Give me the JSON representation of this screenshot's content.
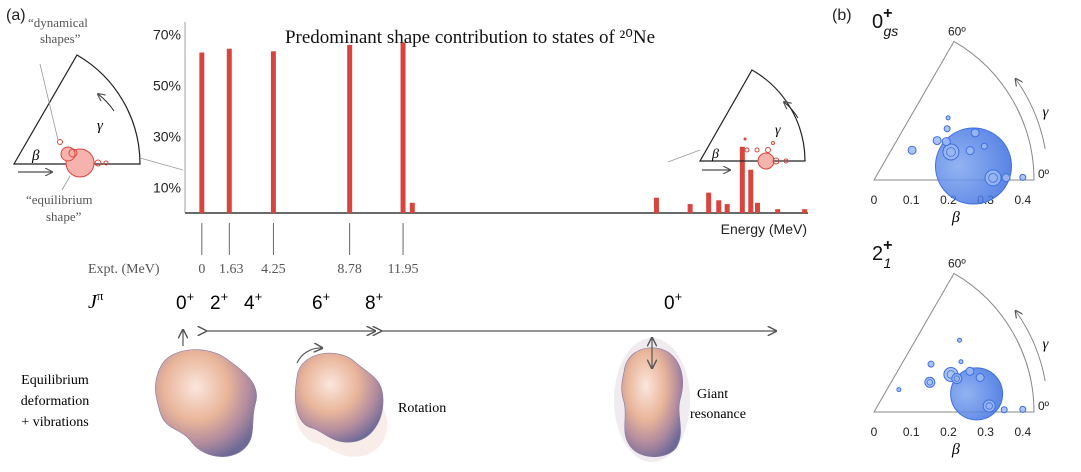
{
  "panel_labels": {
    "a": "(a)",
    "b": "(b)"
  },
  "chart_data": [
    {
      "type": "bar",
      "title": "Predominant shape contribution to states of ²⁰Ne",
      "xlabel": "Energy (MeV)",
      "ylabel": "",
      "ytick_labels": [
        "10%",
        "30%",
        "50%",
        "70%"
      ],
      "ytick_values": [
        10,
        30,
        50,
        70
      ],
      "ylim": [
        0,
        75
      ],
      "xlim": [
        -1,
        36
      ],
      "x": [
        0,
        1.63,
        4.25,
        8.78,
        11.95,
        12.5,
        27,
        29,
        30.1,
        30.7,
        31.2,
        32.1,
        32.6,
        33,
        34.2,
        35.8
      ],
      "values": [
        63,
        64.5,
        63.5,
        66,
        67,
        4,
        6,
        3.5,
        8,
        5,
        3.5,
        26,
        17,
        4,
        1.5,
        1.5
      ],
      "color": "#d9453c"
    },
    {
      "type": "scatter",
      "panel": "(b)",
      "state": {
        "main": "0",
        "sup": "+",
        "sub": "gs"
      },
      "xlabel": "β",
      "gamma_label": "γ",
      "angle_labels": [
        "60º",
        "0º"
      ],
      "xtick_labels": [
        "0",
        "0.1",
        "0.2",
        "0.3",
        "0.4"
      ],
      "xticks": [
        0,
        0.1,
        0.2,
        0.3,
        0.4
      ],
      "xlim": [
        0,
        0.43
      ],
      "points": [
        {
          "beta": 0.27,
          "gamma": 8,
          "size": 38
        },
        {
          "beta": 0.32,
          "gamma": 1,
          "size": 8
        },
        {
          "beta": 0.355,
          "gamma": 1,
          "size": 4
        },
        {
          "beta": 0.4,
          "gamma": 1,
          "size": 3
        },
        {
          "beta": 0.22,
          "gamma": 20,
          "size": 8
        },
        {
          "beta": 0.22,
          "gamma": 28,
          "size": 4
        },
        {
          "beta": 0.3,
          "gamma": 25,
          "size": 4
        },
        {
          "beta": 0.2,
          "gamma": 32,
          "size": 4
        },
        {
          "beta": 0.27,
          "gamma": 17,
          "size": 4
        },
        {
          "beta": 0.13,
          "gamma": 38,
          "size": 4
        },
        {
          "beta": 0.24,
          "gamma": 35,
          "size": 3
        },
        {
          "beta": 0.31,
          "gamma": 17,
          "size": 3
        },
        {
          "beta": 0.26,
          "gamma": 40,
          "size": 2
        }
      ]
    },
    {
      "type": "scatter",
      "panel": "(b)",
      "state": {
        "main": "2",
        "sup": "+",
        "sub": "1"
      },
      "xlabel": "β",
      "gamma_label": "γ",
      "angle_labels": [
        "60º",
        "0º"
      ],
      "xtick_labels": [
        "0",
        "0.1",
        "0.2",
        "0.3",
        "0.4"
      ],
      "xticks": [
        0,
        0.1,
        0.2,
        0.3,
        0.4
      ],
      "xlim": [
        0,
        0.43
      ],
      "points": [
        {
          "beta": 0.28,
          "gamma": 10,
          "size": 26
        },
        {
          "beta": 0.23,
          "gamma": 26,
          "size": 7
        },
        {
          "beta": 0.24,
          "gamma": 22,
          "size": 5
        },
        {
          "beta": 0.31,
          "gamma": 3,
          "size": 6
        },
        {
          "beta": 0.3,
          "gamma": 18,
          "size": 4
        },
        {
          "beta": 0.17,
          "gamma": 28,
          "size": 5
        },
        {
          "beta": 0.2,
          "gamma": 40,
          "size": 3
        },
        {
          "beta": 0.35,
          "gamma": 1,
          "size": 3
        },
        {
          "beta": 0.4,
          "gamma": 1,
          "size": 3
        },
        {
          "beta": 0.28,
          "gamma": 23,
          "size": 4
        },
        {
          "beta": 0.09,
          "gamma": 42,
          "size": 2
        },
        {
          "beta": 0.27,
          "gamma": 30,
          "size": 2
        },
        {
          "beta": 0.3,
          "gamma": 40,
          "size": 2
        }
      ]
    }
  ],
  "insets": {
    "left": {
      "top_label_1": "“dynamical",
      "top_label_2": "shapes”",
      "bottom_label_1": "“equilibrium",
      "bottom_label_2": "shape”",
      "beta": "β",
      "gamma": "γ"
    },
    "right": {
      "beta": "β",
      "gamma": "γ"
    }
  },
  "expt": {
    "label": "Expt. (MeV)",
    "levels": [
      {
        "energy": 0,
        "text": "0"
      },
      {
        "energy": 1.63,
        "text": "1.63"
      },
      {
        "energy": 4.25,
        "text": "4.25"
      },
      {
        "energy": 8.78,
        "text": "8.78"
      },
      {
        "energy": 11.95,
        "text": "11.95"
      }
    ]
  },
  "spin": {
    "label_main": "J",
    "label_sup": "π",
    "states": [
      {
        "main": "0",
        "sup": "+"
      },
      {
        "main": "2",
        "sup": "+"
      },
      {
        "main": "4",
        "sup": "+"
      },
      {
        "main": "6",
        "sup": "+"
      },
      {
        "main": "8",
        "sup": "+"
      },
      {
        "main": "0",
        "sup": "+"
      }
    ]
  },
  "modes": {
    "equilibrium": [
      "Equilibrium",
      "deformation",
      "+ vibrations"
    ],
    "rotation": [
      "Rotation"
    ],
    "giant": [
      "Giant",
      "resonance"
    ]
  }
}
